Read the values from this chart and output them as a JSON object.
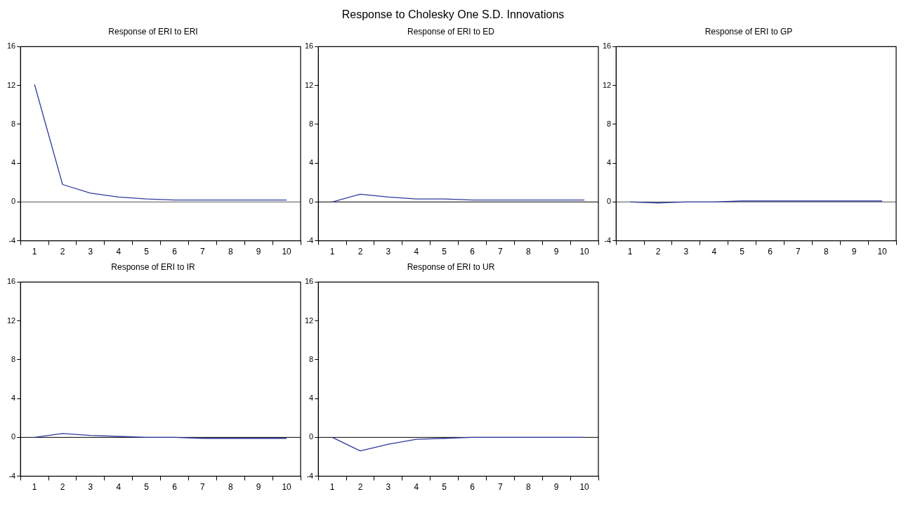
{
  "chart_data": [
    {
      "type": "line",
      "title": "Response of ERI to ERI",
      "annotations": [
        "Response to Cholesky One S.D. Innovations"
      ],
      "categories": [
        "1",
        "2",
        "3",
        "4",
        "5",
        "6",
        "7",
        "8",
        "9",
        "10"
      ],
      "series": [
        {
          "color": "#2e3a9c",
          "values": [
            12.1,
            1.8,
            0.9,
            0.5,
            0.3,
            0.2,
            0.2,
            0.2,
            0.2,
            0.2
          ]
        }
      ],
      "ylim": [
        -4,
        16
      ],
      "yticks": [
        -4,
        0,
        4,
        8,
        12,
        16
      ],
      "grid": false,
      "legend": false,
      "marker": "none",
      "line_style": "solid",
      "ref_lines": [
        {
          "axis": "y",
          "value": 0,
          "color": "#555555"
        }
      ]
    },
    {
      "type": "line",
      "title": "Response of ERI to ED",
      "categories": [
        "1",
        "2",
        "3",
        "4",
        "5",
        "6",
        "7",
        "8",
        "9",
        "10"
      ],
      "series": [
        {
          "color": "#2e3a9c",
          "values": [
            0,
            0.8,
            0.5,
            0.3,
            0.3,
            0.2,
            0.2,
            0.2,
            0.2,
            0.2
          ]
        }
      ],
      "ylim": [
        -4,
        16
      ],
      "yticks": [
        -4,
        0,
        4,
        8,
        12,
        16
      ],
      "grid": false,
      "legend": false,
      "marker": "none",
      "line_style": "solid",
      "ref_lines": [
        {
          "axis": "y",
          "value": 0,
          "color": "#000000"
        }
      ]
    },
    {
      "type": "line",
      "title": "Response of ERI to GP",
      "categories": [
        "1",
        "2",
        "3",
        "4",
        "5",
        "6",
        "7",
        "8",
        "9",
        "10"
      ],
      "series": [
        {
          "color": "#2e3a9c",
          "values": [
            0,
            -0.1,
            0,
            0,
            0.1,
            0.1,
            0.1,
            0.1,
            0.1,
            0.1
          ]
        }
      ],
      "ylim": [
        -4,
        16
      ],
      "yticks": [
        -4,
        0,
        4,
        8,
        12,
        16
      ],
      "grid": false,
      "legend": false,
      "marker": "none",
      "line_style": "solid",
      "ref_lines": [
        {
          "axis": "y",
          "value": 0,
          "color": "#555555"
        }
      ]
    },
    {
      "type": "line",
      "title": "Response of ERI to IR",
      "categories": [
        "1",
        "2",
        "3",
        "4",
        "5",
        "6",
        "7",
        "8",
        "9",
        "10"
      ],
      "series": [
        {
          "color": "#2e3a9c",
          "values": [
            0,
            0.4,
            0.2,
            0.1,
            0,
            0,
            -0.1,
            -0.1,
            -0.1,
            -0.1
          ]
        }
      ],
      "ylim": [
        -4,
        16
      ],
      "yticks": [
        -4,
        0,
        4,
        8,
        12,
        16
      ],
      "grid": false,
      "legend": false,
      "marker": "none",
      "line_style": "solid",
      "ref_lines": [
        {
          "axis": "y",
          "value": 0,
          "color": "#000000"
        }
      ]
    },
    {
      "type": "line",
      "title": "Response of ERI to UR",
      "categories": [
        "1",
        "2",
        "3",
        "4",
        "5",
        "6",
        "7",
        "8",
        "9",
        "10"
      ],
      "series": [
        {
          "color": "#2e3a9c",
          "values": [
            0,
            -1.4,
            -0.7,
            -0.2,
            -0.1,
            0,
            0,
            0,
            0,
            0
          ]
        }
      ],
      "ylim": [
        -4,
        16
      ],
      "yticks": [
        -4,
        0,
        4,
        8,
        12,
        16
      ],
      "grid": false,
      "legend": false,
      "marker": "none",
      "line_style": "solid",
      "ref_lines": [
        {
          "axis": "y",
          "value": 0,
          "color": "#000000"
        }
      ]
    }
  ]
}
